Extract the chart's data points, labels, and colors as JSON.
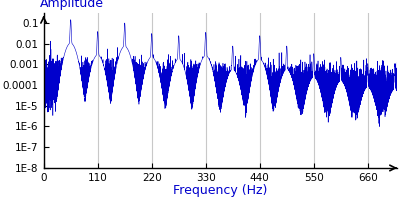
{
  "xlabel": "Frequency (Hz)",
  "ylabel": "Amplitude",
  "xlim": [
    0,
    720
  ],
  "ylim_log": [
    1e-08,
    0.3
  ],
  "line_color": "#0000CC",
  "background_color": "#ffffff",
  "grid_color": "#c8c8c8",
  "xlabel_color": "#0000CC",
  "ylabel_color": "#0000CC",
  "xticks": [
    0,
    110,
    220,
    330,
    440,
    550,
    660
  ],
  "ytick_labels": [
    "1E-8",
    "1E-7",
    "1E-6",
    "1E-5",
    "0.0001",
    "0.001",
    "0.01",
    "0.1"
  ],
  "ytick_vals": [
    1e-08,
    1e-07,
    1e-06,
    1e-05,
    0.0001,
    0.001,
    0.01,
    0.1
  ],
  "fundamental": 55,
  "harmonic_amplitudes": [
    0.13,
    0.035,
    0.09,
    0.028,
    0.022,
    0.032,
    0.007,
    0.022,
    0.007,
    0.003,
    0.002,
    0.001,
    0.0008,
    0.0005
  ],
  "noise_floor_base": 0.00012,
  "figsize": [
    4.0,
    2.0
  ],
  "dpi": 100
}
